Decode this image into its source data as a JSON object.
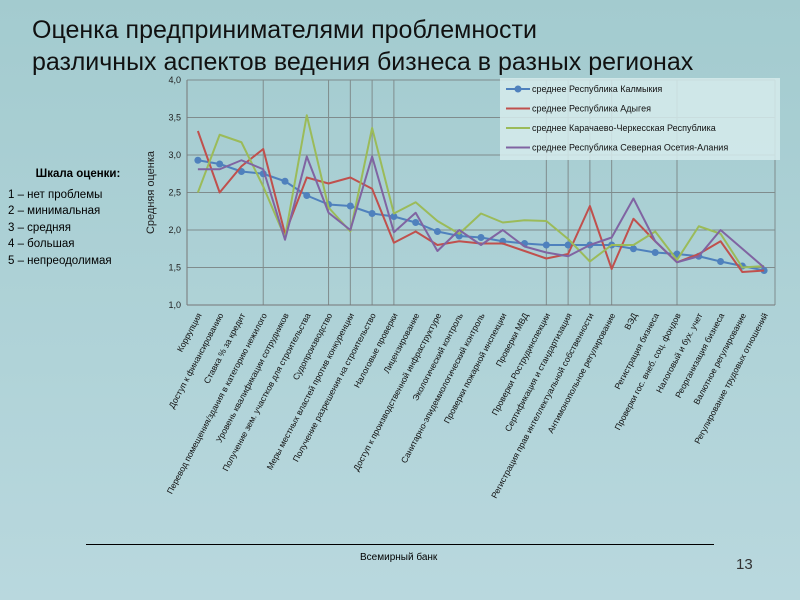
{
  "slide": {
    "title_line1": "Оценка предпринимателями проблемности",
    "title_line2": "различных аспектов ведения бизнеса в разных регионах",
    "source": "Всемирный банк",
    "page_number": "13"
  },
  "scale": {
    "heading": "Шкала оценки:",
    "items": [
      "1 – нет проблемы",
      "2 – минимальная",
      "3 – средняя",
      "4 – большая",
      "5 – непреодолимая"
    ]
  },
  "chart_data": {
    "type": "line",
    "title": "",
    "xlabel": "",
    "ylabel": "Средняя оценка",
    "ylim": [
      1.0,
      4.0
    ],
    "yticks": [
      "1,0",
      "1,5",
      "2,0",
      "2,5",
      "3,0",
      "3,5",
      "4,0"
    ],
    "grid": true,
    "legend_position": "top-right",
    "categories": [
      "Коррупция",
      "Доступ к финансированию",
      "Ставка % за кредит",
      "Перевод помещения/здания в категорию нежилого",
      "Уровень квалификации сотрудников",
      "Получение зем. участков для строительства",
      "Судопроизводство",
      "Меры местных властей против конкуренции",
      "Получение разрешения на строительство",
      "Налоговые проверки",
      "Лицензирование",
      "Доступ к производственной инфраструктуре",
      "Экологический контроль",
      "Санитарно-эпидемиологический контроль",
      "Проверки пожарной инспекции",
      "Проверки МВД",
      "Проверки Рострудинспекции",
      "Сертификация и стандартизация",
      "Регистрация прав интеллектуальной собственности",
      "Антимонопольное регулирование",
      "ВЭД",
      "Регистрация бизнеса",
      "Проверки гос. внеб. соц. фондов",
      "Налоговый и бух. учет",
      "Реорганизация бизнеса",
      "Валютное регулирование",
      "Регулирование трудовых отношений"
    ],
    "series": [
      {
        "name": "среднее Республика Калмыкия",
        "color": "#4f81bd",
        "markers": true,
        "values": [
          2.93,
          2.88,
          2.78,
          2.75,
          2.65,
          2.46,
          2.34,
          2.32,
          2.22,
          2.18,
          2.1,
          1.98,
          1.92,
          1.9,
          1.85,
          1.82,
          1.8,
          1.8,
          1.8,
          1.8,
          1.75,
          1.7,
          1.68,
          1.65,
          1.58,
          1.52,
          1.46
        ]
      },
      {
        "name": "среднее Республика Адыгея",
        "color": "#c0504d",
        "markers": false,
        "values": [
          3.32,
          2.5,
          2.85,
          3.08,
          1.95,
          2.7,
          2.62,
          2.7,
          2.55,
          1.83,
          1.98,
          1.8,
          1.85,
          1.82,
          1.82,
          1.72,
          1.62,
          1.68,
          2.32,
          1.48,
          2.15,
          1.85,
          1.57,
          1.68,
          1.85,
          1.44,
          1.46
        ]
      },
      {
        "name": "среднее Карачаево-Черкесская Республика",
        "color": "#9bbb59",
        "markers": false,
        "values": [
          2.5,
          3.27,
          3.17,
          2.58,
          1.9,
          3.53,
          2.3,
          1.98,
          3.36,
          2.22,
          2.37,
          2.12,
          1.95,
          2.22,
          2.1,
          2.13,
          2.12,
          1.88,
          1.58,
          1.8,
          1.8,
          1.98,
          1.6,
          2.05,
          1.95,
          1.5,
          1.52
        ]
      },
      {
        "name": "среднее Республика Северная Осетия-Алания",
        "color": "#8064a2",
        "markers": false,
        "values": [
          2.81,
          2.81,
          2.93,
          2.81,
          1.87,
          2.98,
          2.23,
          2.0,
          2.98,
          1.97,
          2.23,
          1.72,
          2.0,
          1.8,
          2.0,
          1.78,
          1.7,
          1.65,
          1.8,
          1.9,
          2.42,
          1.85,
          1.57,
          1.65,
          2.0,
          1.75,
          1.5
        ]
      }
    ]
  }
}
